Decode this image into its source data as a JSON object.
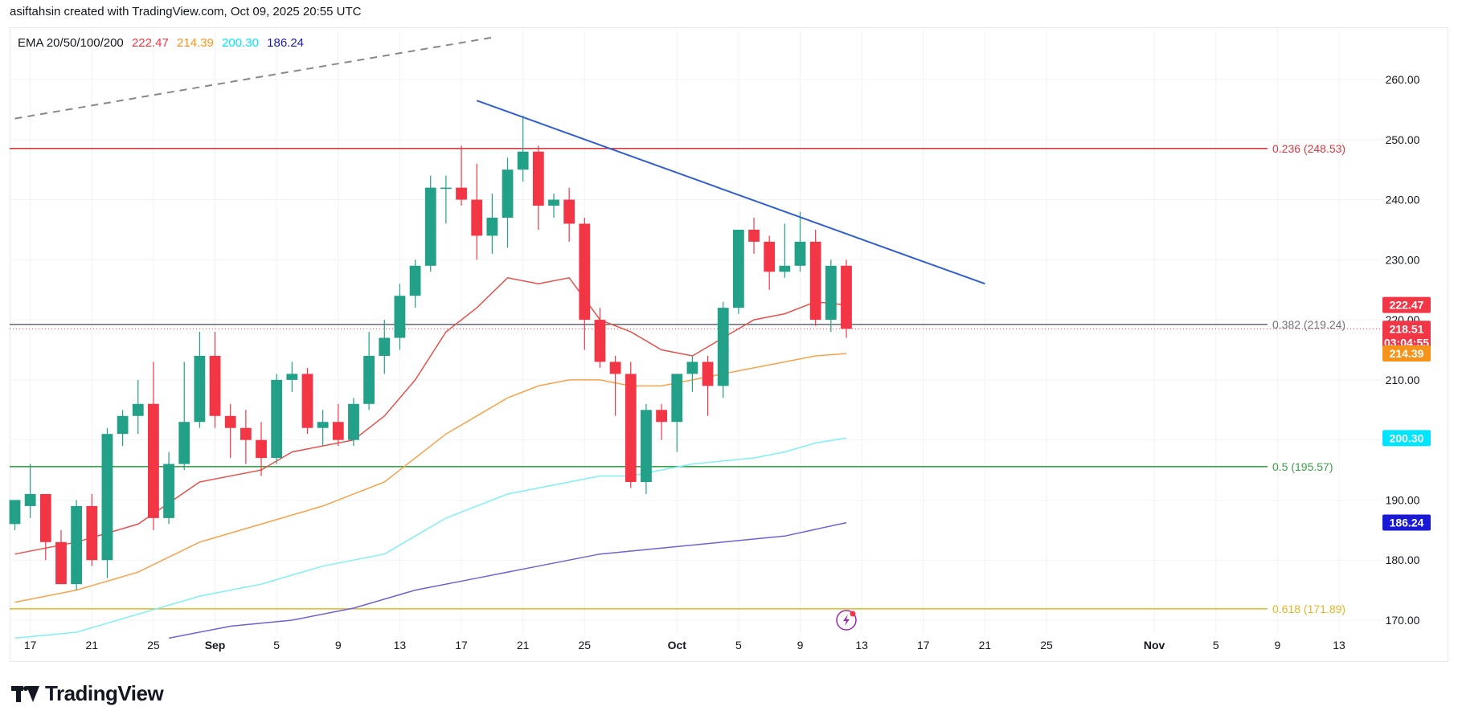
{
  "header": {
    "text": "asiftahsin created with TradingView.com, Oct 09, 2025 20:55 UTC"
  },
  "ema_legend": {
    "label": "EMA 20/50/100/200",
    "values": [
      {
        "text": "222.47",
        "color": "#f23645"
      },
      {
        "text": "214.39",
        "color": "#f7931a"
      },
      {
        "text": "200.30",
        "color": "#00e5ff"
      },
      {
        "text": "186.24",
        "color": "#1a1aa6"
      }
    ]
  },
  "logo": {
    "text": "TradingView"
  },
  "chart_data": {
    "type": "candlestick",
    "ylim": [
      165,
      265
    ],
    "y_ticks": [
      "170.00",
      "180.00",
      "190.00",
      "200.00",
      "210.00",
      "220.00",
      "230.00",
      "240.00",
      "250.00",
      "260.00"
    ],
    "x_ticks": [
      {
        "day": 17,
        "label": "17"
      },
      {
        "day": 21,
        "label": "21"
      },
      {
        "day": 25,
        "label": "25"
      },
      {
        "day": 29,
        "label": "Sep",
        "bold": true
      },
      {
        "day": 33,
        "label": "5"
      },
      {
        "day": 37,
        "label": "9"
      },
      {
        "day": 41,
        "label": "13"
      },
      {
        "day": 45,
        "label": "17"
      },
      {
        "day": 49,
        "label": "21"
      },
      {
        "day": 53,
        "label": "25"
      },
      {
        "day": 59,
        "label": "Oct",
        "bold": true
      },
      {
        "day": 63,
        "label": "5"
      },
      {
        "day": 67,
        "label": "9"
      },
      {
        "day": 71,
        "label": "13"
      },
      {
        "day": 75,
        "label": "17"
      },
      {
        "day": 79,
        "label": "21"
      },
      {
        "day": 83,
        "label": "25"
      },
      {
        "day": 90,
        "label": "Nov",
        "bold": true
      },
      {
        "day": 94,
        "label": "5"
      },
      {
        "day": 98,
        "label": "9"
      },
      {
        "day": 102,
        "label": "13"
      }
    ],
    "candles": [
      {
        "day": 16,
        "o": 186,
        "h": 190,
        "l": 185,
        "c": 190
      },
      {
        "day": 17,
        "o": 189,
        "h": 196,
        "l": 187,
        "c": 191
      },
      {
        "day": 18,
        "o": 191,
        "h": 191,
        "l": 180,
        "c": 183
      },
      {
        "day": 19,
        "o": 183,
        "h": 185,
        "l": 176,
        "c": 176
      },
      {
        "day": 20,
        "o": 176,
        "h": 190,
        "l": 175,
        "c": 189
      },
      {
        "day": 21,
        "o": 189,
        "h": 191,
        "l": 179,
        "c": 180
      },
      {
        "day": 22,
        "o": 180,
        "h": 202,
        "l": 177,
        "c": 201
      },
      {
        "day": 23,
        "o": 201,
        "h": 205,
        "l": 199,
        "c": 204
      },
      {
        "day": 24,
        "o": 204,
        "h": 210,
        "l": 201,
        "c": 206
      },
      {
        "day": 25,
        "o": 206,
        "h": 213,
        "l": 185,
        "c": 187
      },
      {
        "day": 26,
        "o": 187,
        "h": 198,
        "l": 186,
        "c": 196
      },
      {
        "day": 27,
        "o": 196,
        "h": 213,
        "l": 195,
        "c": 203
      },
      {
        "day": 28,
        "o": 203,
        "h": 218,
        "l": 202,
        "c": 214
      },
      {
        "day": 29,
        "o": 214,
        "h": 218,
        "l": 202,
        "c": 204
      },
      {
        "day": 30,
        "o": 204,
        "h": 206,
        "l": 197,
        "c": 202
      },
      {
        "day": 31,
        "o": 202,
        "h": 205,
        "l": 196,
        "c": 200
      },
      {
        "day": 32,
        "o": 200,
        "h": 203,
        "l": 194,
        "c": 197
      },
      {
        "day": 33,
        "o": 197,
        "h": 211,
        "l": 196,
        "c": 210
      },
      {
        "day": 34,
        "o": 210,
        "h": 213,
        "l": 208,
        "c": 211
      },
      {
        "day": 35,
        "o": 211,
        "h": 212,
        "l": 201,
        "c": 202
      },
      {
        "day": 36,
        "o": 202,
        "h": 205,
        "l": 199,
        "c": 203
      },
      {
        "day": 37,
        "o": 203,
        "h": 206,
        "l": 199,
        "c": 200
      },
      {
        "day": 38,
        "o": 200,
        "h": 207,
        "l": 199,
        "c": 206
      },
      {
        "day": 39,
        "o": 206,
        "h": 218,
        "l": 205,
        "c": 214
      },
      {
        "day": 40,
        "o": 214,
        "h": 220,
        "l": 211,
        "c": 217
      },
      {
        "day": 41,
        "o": 217,
        "h": 226,
        "l": 215,
        "c": 224
      },
      {
        "day": 42,
        "o": 224,
        "h": 230,
        "l": 222,
        "c": 229
      },
      {
        "day": 43,
        "o": 229,
        "h": 244,
        "l": 228,
        "c": 242
      },
      {
        "day": 44,
        "o": 242,
        "h": 244,
        "l": 236,
        "c": 242
      },
      {
        "day": 45,
        "o": 242,
        "h": 249,
        "l": 239,
        "c": 240
      },
      {
        "day": 46,
        "o": 240,
        "h": 246,
        "l": 230,
        "c": 234
      },
      {
        "day": 47,
        "o": 234,
        "h": 241,
        "l": 231,
        "c": 237
      },
      {
        "day": 48,
        "o": 237,
        "h": 247,
        "l": 232,
        "c": 245
      },
      {
        "day": 49,
        "o": 245,
        "h": 254,
        "l": 243,
        "c": 248
      },
      {
        "day": 50,
        "o": 248,
        "h": 249,
        "l": 235,
        "c": 239
      },
      {
        "day": 51,
        "o": 239,
        "h": 241,
        "l": 237,
        "c": 240
      },
      {
        "day": 52,
        "o": 240,
        "h": 242,
        "l": 233,
        "c": 236
      },
      {
        "day": 53,
        "o": 236,
        "h": 237,
        "l": 215,
        "c": 220
      },
      {
        "day": 54,
        "o": 220,
        "h": 222,
        "l": 212,
        "c": 213
      },
      {
        "day": 55,
        "o": 213,
        "h": 214,
        "l": 204,
        "c": 211
      },
      {
        "day": 56,
        "o": 211,
        "h": 213,
        "l": 192,
        "c": 193
      },
      {
        "day": 57,
        "o": 193,
        "h": 206,
        "l": 191,
        "c": 205
      },
      {
        "day": 58,
        "o": 205,
        "h": 206,
        "l": 200,
        "c": 203
      },
      {
        "day": 59,
        "o": 203,
        "h": 211,
        "l": 198,
        "c": 211
      },
      {
        "day": 60,
        "o": 211,
        "h": 214,
        "l": 208,
        "c": 213
      },
      {
        "day": 61,
        "o": 213,
        "h": 214,
        "l": 204,
        "c": 209
      },
      {
        "day": 62,
        "o": 209,
        "h": 223,
        "l": 207,
        "c": 222
      },
      {
        "day": 63,
        "o": 222,
        "h": 235,
        "l": 221,
        "c": 235
      },
      {
        "day": 64,
        "o": 235,
        "h": 237,
        "l": 231,
        "c": 233
      },
      {
        "day": 65,
        "o": 233,
        "h": 234,
        "l": 225,
        "c": 228
      },
      {
        "day": 66,
        "o": 228,
        "h": 236,
        "l": 227,
        "c": 229
      },
      {
        "day": 67,
        "o": 229,
        "h": 238,
        "l": 228,
        "c": 233
      },
      {
        "day": 68,
        "o": 233,
        "h": 235,
        "l": 219,
        "c": 220
      },
      {
        "day": 69,
        "o": 220,
        "h": 230,
        "l": 218,
        "c": 229
      },
      {
        "day": 70,
        "o": 229,
        "h": 230,
        "l": 217,
        "c": 218.51
      }
    ],
    "ema_series": [
      {
        "color": "#e8504a",
        "points": [
          [
            16,
            181
          ],
          [
            20,
            183
          ],
          [
            24,
            186
          ],
          [
            28,
            193
          ],
          [
            32,
            195
          ],
          [
            34,
            198
          ],
          [
            36,
            199
          ],
          [
            38,
            200
          ],
          [
            40,
            204
          ],
          [
            42,
            210
          ],
          [
            44,
            218
          ],
          [
            46,
            222
          ],
          [
            48,
            227
          ],
          [
            50,
            226
          ],
          [
            52,
            227
          ],
          [
            54,
            220
          ],
          [
            56,
            218
          ],
          [
            58,
            215
          ],
          [
            60,
            214
          ],
          [
            62,
            217
          ],
          [
            64,
            220
          ],
          [
            66,
            221
          ],
          [
            68,
            223
          ],
          [
            70,
            222.47
          ]
        ]
      },
      {
        "color": "#f7a24a",
        "points": [
          [
            16,
            173
          ],
          [
            20,
            175
          ],
          [
            24,
            178
          ],
          [
            28,
            183
          ],
          [
            32,
            186
          ],
          [
            36,
            189
          ],
          [
            40,
            193
          ],
          [
            42,
            197
          ],
          [
            44,
            201
          ],
          [
            46,
            204
          ],
          [
            48,
            207
          ],
          [
            50,
            209
          ],
          [
            52,
            210
          ],
          [
            54,
            210
          ],
          [
            56,
            209
          ],
          [
            58,
            209
          ],
          [
            60,
            210
          ],
          [
            62,
            211
          ],
          [
            64,
            212
          ],
          [
            66,
            213
          ],
          [
            68,
            214
          ],
          [
            70,
            214.39
          ]
        ]
      },
      {
        "color": "#7ff0f5",
        "points": [
          [
            16,
            167
          ],
          [
            20,
            168
          ],
          [
            24,
            171
          ],
          [
            28,
            174
          ],
          [
            32,
            176
          ],
          [
            36,
            179
          ],
          [
            40,
            181
          ],
          [
            42,
            184
          ],
          [
            44,
            187
          ],
          [
            46,
            189
          ],
          [
            48,
            191
          ],
          [
            50,
            192
          ],
          [
            52,
            193
          ],
          [
            54,
            194
          ],
          [
            56,
            194
          ],
          [
            58,
            195
          ],
          [
            60,
            196
          ],
          [
            62,
            196.5
          ],
          [
            64,
            197
          ],
          [
            66,
            198
          ],
          [
            68,
            199.5
          ],
          [
            70,
            200.3
          ]
        ]
      },
      {
        "color": "#6f60d8",
        "points": [
          [
            26,
            167
          ],
          [
            30,
            169
          ],
          [
            34,
            170
          ],
          [
            38,
            172
          ],
          [
            42,
            175
          ],
          [
            46,
            177
          ],
          [
            50,
            179
          ],
          [
            54,
            181
          ],
          [
            58,
            182
          ],
          [
            62,
            183
          ],
          [
            66,
            184
          ],
          [
            70,
            186.24
          ]
        ]
      }
    ],
    "trendlines": [
      {
        "name": "descending-trendline",
        "color": "#2f5fd0",
        "from": [
          46,
          256.5
        ],
        "to": [
          79,
          226
        ]
      },
      {
        "name": "dashed-trendline",
        "color": "#888888",
        "dashed": true,
        "from": [
          16,
          253.5
        ],
        "to": [
          47,
          267
        ]
      }
    ],
    "fib_levels": [
      {
        "level": 248.53,
        "label": "0.236 (248.53)",
        "color": "#d83a40"
      },
      {
        "level": 219.24,
        "label": "0.382 (219.24)",
        "color": "#707480"
      },
      {
        "level": 195.57,
        "label": "0.5 (195.57)",
        "color": "#3aa04a"
      },
      {
        "level": 171.89,
        "label": "0.618 (171.89)",
        "color": "#e0b820"
      }
    ],
    "price_badges": [
      {
        "value": 222.47,
        "text": "222.47",
        "color": "#f23645"
      },
      {
        "value": 218.51,
        "text": "218.51",
        "sub": "03:04:55",
        "color": "#f23645"
      },
      {
        "value": 214.39,
        "text": "214.39",
        "color": "#f7931a"
      },
      {
        "value": 200.3,
        "text": "200.30",
        "color": "#00e5ff",
        "text_color": "#131722"
      },
      {
        "value": 186.24,
        "text": "186.24",
        "color": "#1a1ad6"
      }
    ],
    "current_price": 218.51,
    "up_color": "#22a088",
    "down_color": "#f23645"
  }
}
